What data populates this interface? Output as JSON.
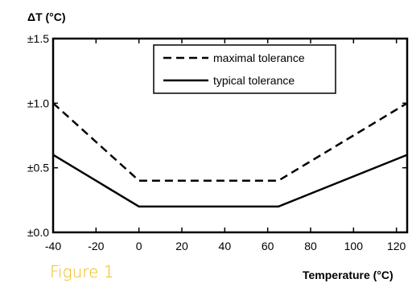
{
  "chart_data": {
    "type": "line",
    "ylabel": "ΔT (°C)",
    "xlabel": "Temperature (°C)",
    "caption": "Figure 1",
    "xlim": [
      -40,
      125
    ],
    "ylim": [
      0,
      1.5
    ],
    "x_ticks": [
      {
        "value": -40,
        "label": "-40"
      },
      {
        "value": -20,
        "label": "-20"
      },
      {
        "value": 0,
        "label": "0"
      },
      {
        "value": 20,
        "label": "20"
      },
      {
        "value": 40,
        "label": "40"
      },
      {
        "value": 60,
        "label": "60"
      },
      {
        "value": 80,
        "label": "80"
      },
      {
        "value": 100,
        "label": "100"
      },
      {
        "value": 120,
        "label": "120"
      }
    ],
    "y_ticks": [
      {
        "value": 0,
        "label": "±0.0"
      },
      {
        "value": 0.5,
        "label": "±0.5"
      },
      {
        "value": 1.0,
        "label": "±1.0"
      },
      {
        "value": 1.5,
        "label": "±1.5"
      }
    ],
    "grid": false,
    "legend_position": "top-right",
    "series": [
      {
        "name": "maximal tolerance",
        "style": "dashed",
        "color": "#000000",
        "points": [
          [
            -40,
            1.0
          ],
          [
            0,
            0.4
          ],
          [
            65,
            0.4
          ],
          [
            125,
            1.0
          ]
        ]
      },
      {
        "name": "typical tolerance",
        "style": "solid",
        "color": "#000000",
        "points": [
          [
            -40,
            0.6
          ],
          [
            0,
            0.2
          ],
          [
            65,
            0.2
          ],
          [
            125,
            0.6
          ]
        ]
      }
    ]
  }
}
